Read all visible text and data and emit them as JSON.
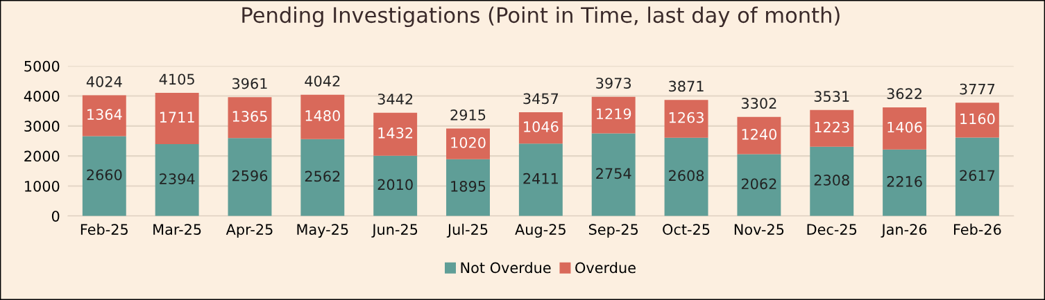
{
  "chart_data": {
    "type": "bar",
    "title": "Pending Investigations (Point in Time, last day of month)",
    "categories": [
      "Feb-25",
      "Mar-25",
      "Apr-25",
      "May-25",
      "Jun-25",
      "Jul-25",
      "Aug-25",
      "Sep-25",
      "Oct-25",
      "Nov-25",
      "Dec-25",
      "Jan-26",
      "Feb-26"
    ],
    "stacked": true,
    "series": [
      {
        "name": "Not Overdue",
        "color": "#5f9e97",
        "values": [
          2660,
          2394,
          2596,
          2562,
          2010,
          1895,
          2411,
          2754,
          2608,
          2062,
          2308,
          2216,
          2617
        ]
      },
      {
        "name": "Overdue",
        "color": "#d9695a",
        "values": [
          1364,
          1711,
          1365,
          1480,
          1432,
          1020,
          1046,
          1219,
          1263,
          1240,
          1223,
          1406,
          1160
        ]
      }
    ],
    "totals": [
      "4024",
      "4105",
      "3961",
      "4042",
      "3442",
      "2915",
      "3457",
      "3973",
      "3871",
      "3302",
      "3531",
      "3622",
      "3777"
    ],
    "data_labels": true,
    "ylim": [
      0,
      5000
    ],
    "yticks": [
      0,
      1000,
      2000,
      3000,
      4000,
      5000
    ],
    "grid": "y",
    "legend": "bottom"
  }
}
